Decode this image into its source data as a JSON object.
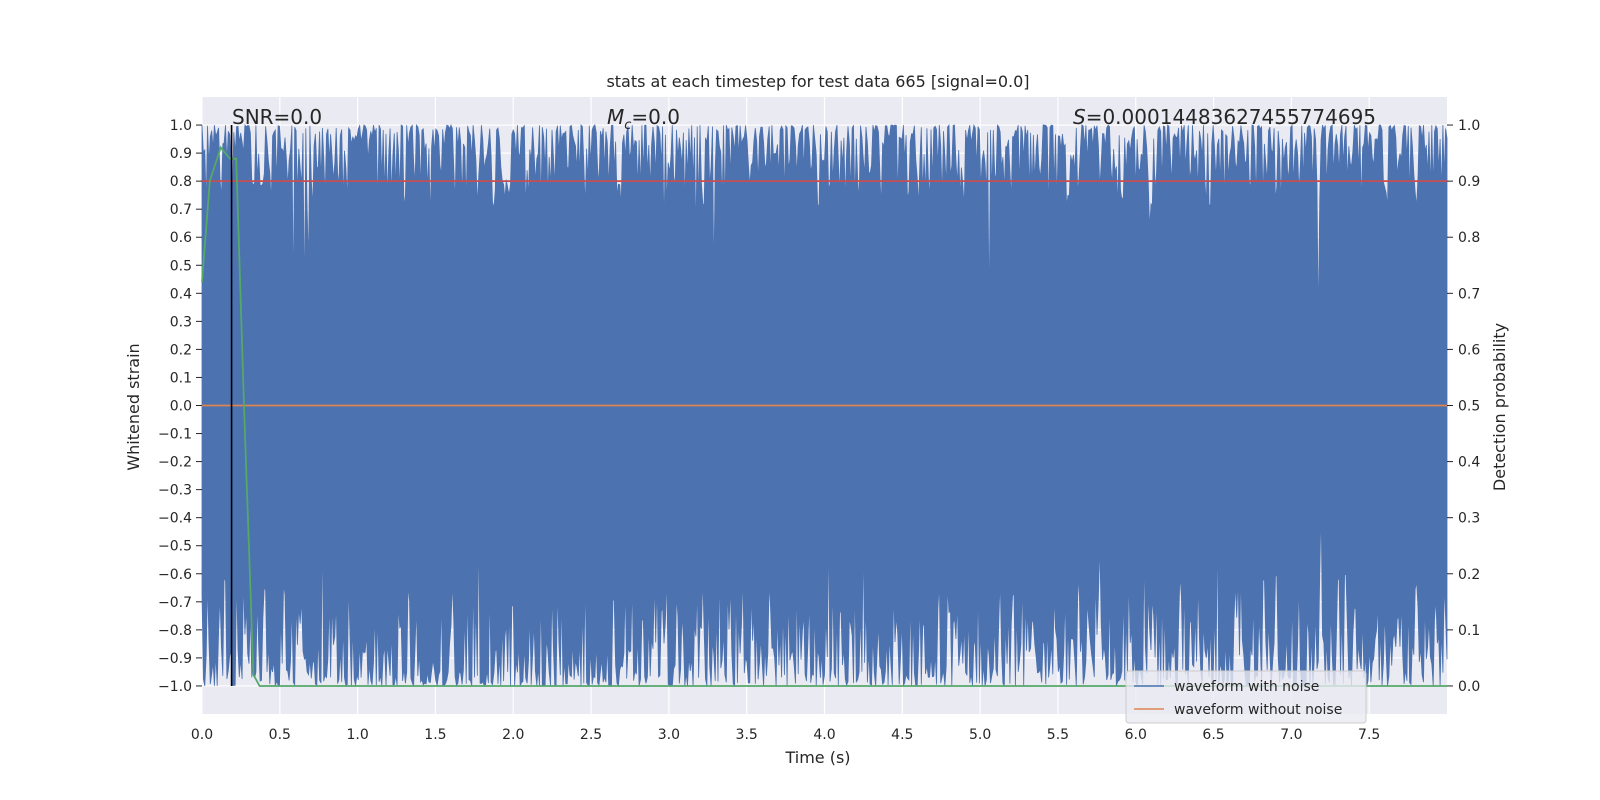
{
  "chart_data": {
    "type": "line",
    "title": "stats at each timestep for test data 665 [signal=0.0]",
    "xlabel": "Time (s)",
    "ylabel_left": "Whitened strain",
    "ylabel_right": "Detection probability",
    "xlim": [
      0.0,
      8.0
    ],
    "ylim_left": [
      -1.1,
      1.1
    ],
    "ylim_right": [
      -0.05,
      1.05
    ],
    "x_ticks": [
      0.0,
      0.5,
      1.0,
      1.5,
      2.0,
      2.5,
      3.0,
      3.5,
      4.0,
      4.5,
      5.0,
      5.5,
      6.0,
      6.5,
      7.0,
      7.5
    ],
    "x_tick_labels": [
      "0.0",
      "0.5",
      "1.0",
      "1.5",
      "2.0",
      "2.5",
      "3.0",
      "3.5",
      "4.0",
      "4.5",
      "5.0",
      "5.5",
      "6.0",
      "6.5",
      "7.0",
      "7.5"
    ],
    "y_left_ticks": [
      1.0,
      0.9,
      0.8,
      0.7,
      0.6,
      0.5,
      0.4,
      0.3,
      0.2,
      0.1,
      0.0,
      -0.1,
      -0.2,
      -0.3,
      -0.4,
      -0.5,
      -0.6,
      -0.7,
      -0.8,
      -0.9,
      -1.0
    ],
    "y_left_tick_labels": [
      "1.0",
      "0.9",
      "0.8",
      "0.7",
      "0.6",
      "0.5",
      "0.4",
      "0.3",
      "0.2",
      "0.1",
      "0.0",
      "−0.1",
      "−0.2",
      "−0.3",
      "−0.4",
      "−0.5",
      "−0.6",
      "−0.7",
      "−0.8",
      "−0.9",
      "−1.0"
    ],
    "y_right_ticks": [
      1.0,
      0.9,
      0.8,
      0.7,
      0.6,
      0.5,
      0.4,
      0.3,
      0.2,
      0.1,
      0.0
    ],
    "y_right_tick_labels": [
      "1.0",
      "0.9",
      "0.8",
      "0.7",
      "0.6",
      "0.5",
      "0.4",
      "0.3",
      "0.2",
      "0.1",
      "0.0"
    ],
    "grid": true,
    "legend_position": "lower right",
    "series": [
      {
        "name": "waveform with noise",
        "axis": "left",
        "color": "#4c72b0",
        "kind": "dense noise band",
        "approx_upper_range": [
          0.7,
          1.0
        ],
        "approx_lower_range": [
          -1.0,
          -0.6
        ]
      },
      {
        "name": "waveform without noise",
        "axis": "left",
        "color": "#dd8452",
        "x": [
          0.0,
          8.0
        ],
        "y": [
          0.0,
          0.0
        ]
      },
      {
        "axis": "right",
        "color": "#55a868",
        "x": [
          0.0,
          0.05,
          0.12,
          0.18,
          0.22,
          0.27,
          0.33,
          0.37,
          8.0
        ],
        "y": [
          0.72,
          0.9,
          0.96,
          0.94,
          0.94,
          0.5,
          0.02,
          0.0,
          0.0
        ]
      },
      {
        "axis": "right",
        "color": "#c44e52",
        "x": [
          0.0,
          8.0
        ],
        "y": [
          0.9,
          0.9
        ]
      }
    ],
    "vertical_lines": [
      {
        "x": 0.19,
        "color": "#000000"
      }
    ],
    "annotations": {
      "snr": "SNR=0.0",
      "mc_symbol": "M",
      "mc_subscript": "c",
      "mc_value": "=0.0",
      "s_symbol": "S",
      "s_value": "=0.00014483627455774695"
    }
  }
}
